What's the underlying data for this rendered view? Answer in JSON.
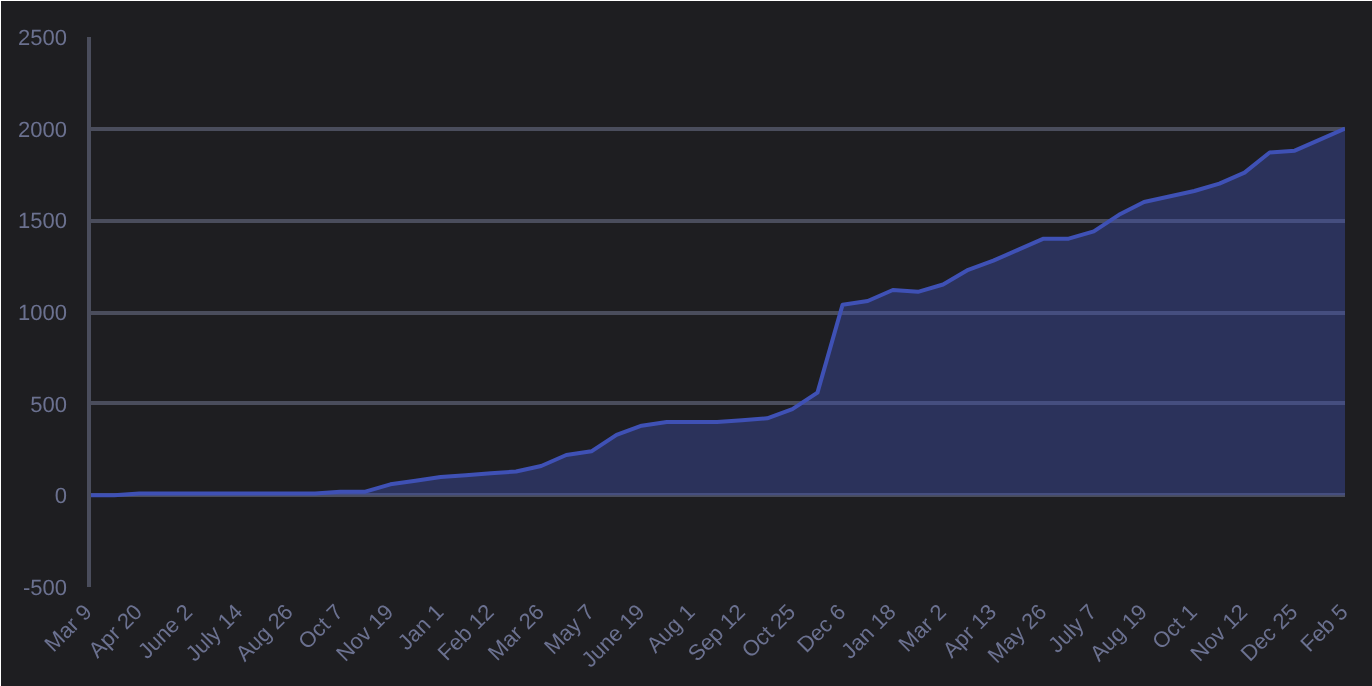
{
  "chart_data": {
    "type": "area",
    "categories": [
      "Mar 9",
      null,
      "Apr 20",
      null,
      "June 2",
      null,
      "July 14",
      null,
      "Aug 26",
      null,
      "Oct 7",
      null,
      "Nov 19",
      null,
      "Jan 1",
      null,
      "Feb 12",
      null,
      "Mar 26",
      null,
      "May 7",
      null,
      "June 19",
      null,
      "Aug 1",
      null,
      "Sep 12",
      null,
      "Oct 25",
      null,
      "Dec 6",
      null,
      "Jan 18",
      null,
      "Mar 2",
      null,
      "Apr 13",
      null,
      "May 26",
      null,
      "July 7",
      null,
      "Aug 19",
      null,
      "Oct 1",
      null,
      "Nov 12",
      null,
      "Dec 25",
      null,
      "Feb 5"
    ],
    "series": [
      {
        "color": "#3f51b5",
        "values": [
          0,
          0,
          10,
          10,
          10,
          10,
          10,
          10,
          10,
          10,
          20,
          20,
          60,
          80,
          100,
          110,
          120,
          130,
          160,
          220,
          240,
          330,
          380,
          400,
          400,
          400,
          410,
          420,
          470,
          560,
          1040,
          1060,
          1120,
          1110,
          1150,
          1230,
          1280,
          1340,
          1400,
          1400,
          1440,
          1530,
          1600,
          1630,
          1660,
          1700,
          1760,
          1870,
          1880,
          1940,
          2000
        ]
      }
    ],
    "ylim": [
      -500,
      2500
    ],
    "yticks": [
      -500,
      0,
      500,
      1000,
      1500,
      2000,
      2500
    ],
    "grid": "y"
  }
}
